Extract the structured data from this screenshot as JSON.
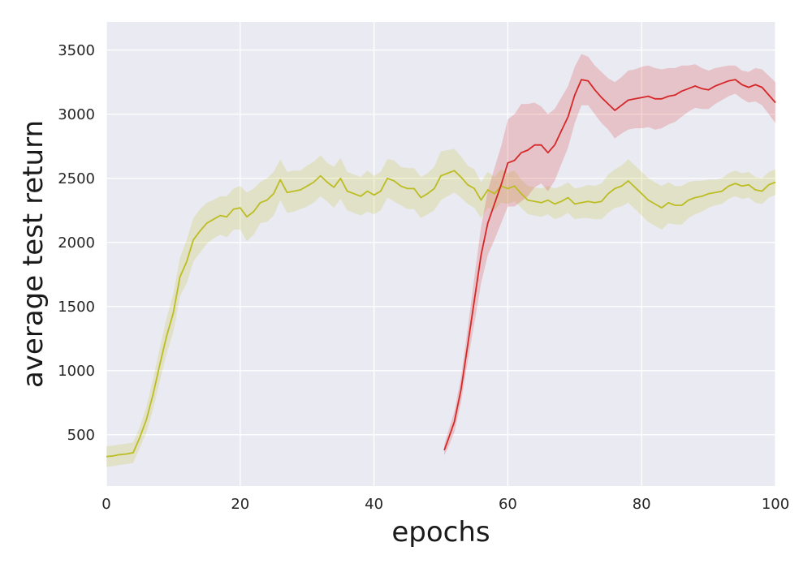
{
  "chart_data": {
    "type": "line",
    "xlabel": "epochs",
    "ylabel": "average test return",
    "xlim": [
      0,
      100
    ],
    "ylim": [
      100,
      3720
    ],
    "x_ticks": [
      0,
      20,
      40,
      60,
      80,
      100
    ],
    "y_ticks": [
      500,
      1000,
      1500,
      2000,
      2500,
      3000,
      3500
    ],
    "grid": true,
    "background": "#eaeaf2",
    "grid_color": "#ffffff",
    "series": [
      {
        "color": "#bcbd22",
        "band_color": "#bcbd22",
        "x": [
          0,
          1,
          2,
          3,
          4,
          5,
          6,
          7,
          8,
          9,
          10,
          11,
          12,
          13,
          14,
          15,
          16,
          17,
          18,
          19,
          20,
          21,
          22,
          23,
          24,
          25,
          26,
          27,
          28,
          29,
          30,
          31,
          32,
          33,
          34,
          35,
          36,
          37,
          38,
          39,
          40,
          41,
          42,
          43,
          44,
          45,
          46,
          47,
          48,
          49,
          50,
          51,
          52,
          53,
          54,
          55,
          56,
          57,
          58,
          59,
          60,
          61,
          62,
          63,
          64,
          65,
          66,
          67,
          68,
          69,
          70,
          71,
          72,
          73,
          74,
          75,
          76,
          77,
          78,
          79,
          80,
          81,
          82,
          83,
          84,
          85,
          86,
          87,
          88,
          89,
          90,
          91,
          92,
          93,
          94,
          95,
          96,
          97,
          98,
          99,
          100
        ],
        "y": [
          330,
          335,
          345,
          350,
          360,
          480,
          620,
          820,
          1050,
          1270,
          1450,
          1730,
          1850,
          2020,
          2090,
          2150,
          2180,
          2210,
          2200,
          2260,
          2270,
          2200,
          2240,
          2310,
          2330,
          2380,
          2490,
          2390,
          2400,
          2410,
          2440,
          2470,
          2520,
          2470,
          2430,
          2500,
          2400,
          2380,
          2360,
          2400,
          2370,
          2400,
          2500,
          2480,
          2440,
          2420,
          2420,
          2350,
          2380,
          2420,
          2520,
          2540,
          2560,
          2510,
          2450,
          2420,
          2330,
          2410,
          2380,
          2440,
          2420,
          2440,
          2380,
          2330,
          2320,
          2310,
          2330,
          2300,
          2320,
          2350,
          2300,
          2310,
          2320,
          2310,
          2320,
          2380,
          2420,
          2440,
          2480,
          2430,
          2380,
          2330,
          2300,
          2270,
          2310,
          2290,
          2290,
          2330,
          2350,
          2360,
          2380,
          2390,
          2400,
          2440,
          2460,
          2440,
          2450,
          2410,
          2400,
          2450,
          2470
        ],
        "band": [
          80,
          80,
          80,
          80,
          80,
          80,
          100,
          120,
          130,
          140,
          150,
          150,
          170,
          170,
          170,
          160,
          150,
          150,
          160,
          160,
          170,
          190,
          180,
          160,
          170,
          170,
          160,
          160,
          160,
          150,
          160,
          160,
          160,
          150,
          160,
          160,
          150,
          150,
          150,
          160,
          150,
          150,
          150,
          160,
          150,
          160,
          160,
          160,
          160,
          170,
          190,
          180,
          170,
          160,
          150,
          150,
          140,
          140,
          130,
          130,
          120,
          120,
          110,
          110,
          110,
          110,
          110,
          120,
          120,
          120,
          120,
          120,
          130,
          130,
          140,
          150,
          150,
          160,
          170,
          170,
          170,
          170,
          170,
          170,
          160,
          150,
          150,
          140,
          130,
          120,
          110,
          100,
          100,
          100,
          100,
          100,
          100,
          100,
          100,
          100,
          100
        ]
      },
      {
        "color": "#d62728",
        "band_color": "#d62728",
        "x": [
          50.5,
          51,
          52,
          53,
          54,
          55,
          56,
          57,
          58,
          59,
          60,
          61,
          62,
          63,
          64,
          65,
          66,
          67,
          68,
          69,
          70,
          71,
          72,
          73,
          74,
          75,
          76,
          77,
          78,
          79,
          80,
          81,
          82,
          83,
          84,
          85,
          86,
          87,
          88,
          89,
          90,
          91,
          92,
          93,
          94,
          95,
          96,
          97,
          98,
          99,
          100
        ],
        "y": [
          380,
          450,
          600,
          850,
          1200,
          1550,
          1900,
          2150,
          2300,
          2450,
          2620,
          2640,
          2700,
          2720,
          2760,
          2760,
          2700,
          2760,
          2870,
          2980,
          3150,
          3270,
          3260,
          3190,
          3130,
          3080,
          3030,
          3070,
          3110,
          3120,
          3130,
          3140,
          3120,
          3120,
          3140,
          3150,
          3180,
          3200,
          3220,
          3200,
          3190,
          3220,
          3240,
          3260,
          3270,
          3230,
          3210,
          3230,
          3210,
          3150,
          3090
        ],
        "band": [
          40,
          60,
          80,
          100,
          130,
          180,
          220,
          250,
          280,
          300,
          340,
          360,
          380,
          360,
          330,
          300,
          300,
          280,
          260,
          240,
          220,
          200,
          190,
          190,
          200,
          200,
          220,
          220,
          230,
          230,
          240,
          240,
          240,
          230,
          220,
          210,
          200,
          180,
          170,
          160,
          150,
          140,
          130,
          120,
          110,
          110,
          120,
          130,
          140,
          150,
          160
        ]
      }
    ]
  }
}
